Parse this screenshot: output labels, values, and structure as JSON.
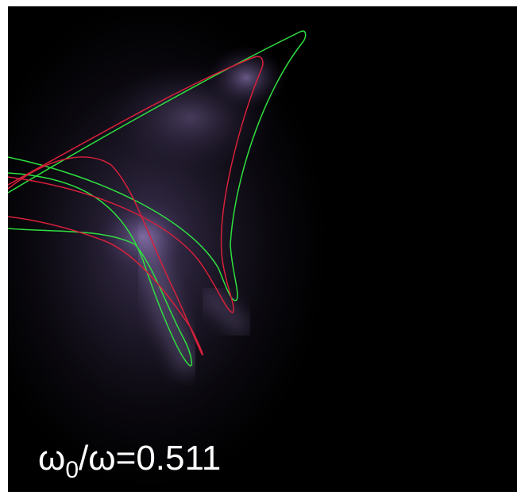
{
  "label": {
    "symbol": "ω",
    "subscript": "0",
    "rest": "/ω=0.511"
  }
}
